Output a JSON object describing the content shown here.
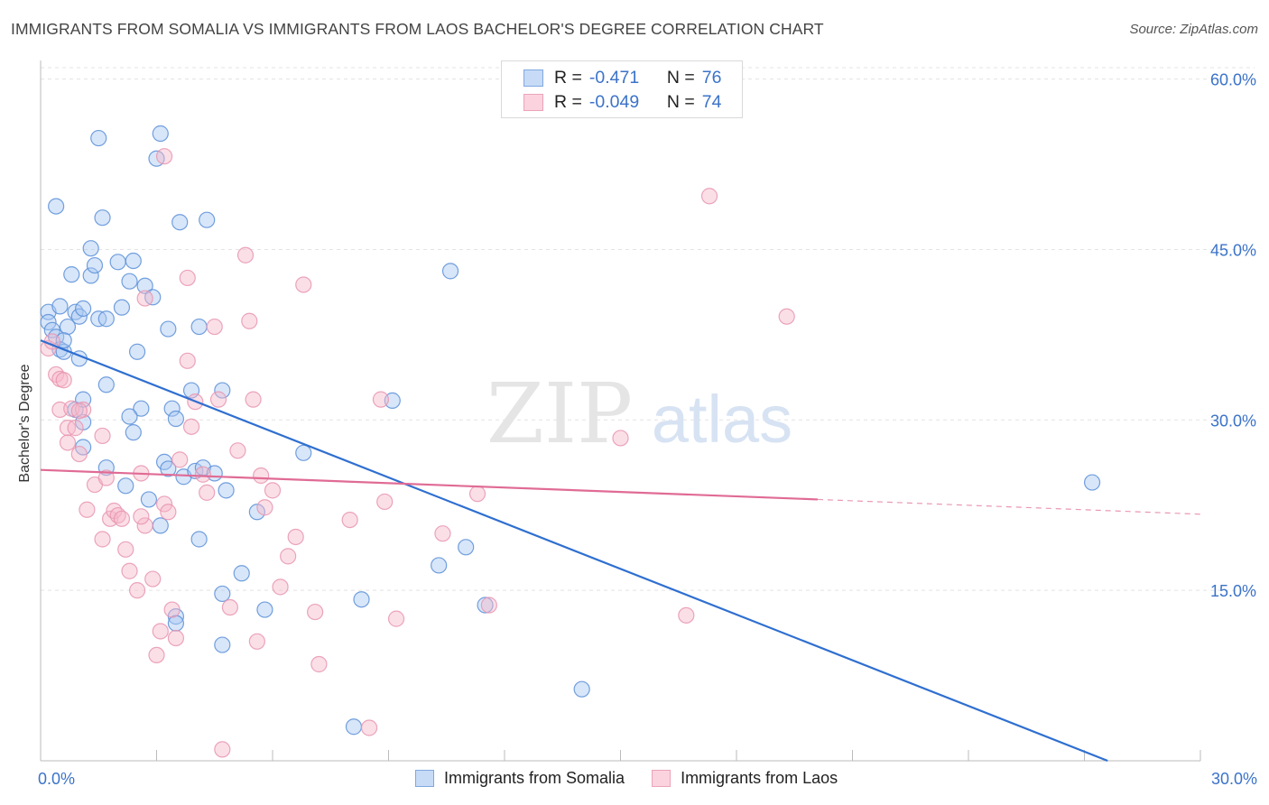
{
  "header": {
    "title": "IMMIGRANTS FROM SOMALIA VS IMMIGRANTS FROM LAOS BACHELOR'S DEGREE CORRELATION CHART",
    "source": "Source: ZipAtlas.com"
  },
  "watermark": {
    "zip": "ZIP",
    "atlas": "atlas"
  },
  "stats_legend": {
    "rows": [
      {
        "r_label": "R =",
        "r_value": "-0.471",
        "n_label": "N =",
        "n_value": "76",
        "color": "#a9c8f2"
      },
      {
        "r_label": "R =",
        "r_value": "-0.049",
        "n_label": "N =",
        "n_value": "74",
        "color": "#f7b7c9"
      }
    ]
  },
  "chart_data": {
    "type": "scatter",
    "title": "IMMIGRANTS FROM SOMALIA VS IMMIGRANTS FROM LAOS BACHELOR'S DEGREE CORRELATION CHART",
    "xlabel": "",
    "ylabel": "Bachelor's Degree",
    "xlim": [
      0,
      30
    ],
    "ylim": [
      0,
      61
    ],
    "x_tick_labels": [
      "0.0%",
      "30.0%"
    ],
    "y_ticks": [
      15,
      30,
      45,
      60
    ],
    "y_tick_labels": [
      "15.0%",
      "30.0%",
      "45.0%",
      "60.0%"
    ],
    "grid": true,
    "legend": "bottom",
    "series": [
      {
        "name": "Immigrants from Somalia",
        "color": "#5b8fd8",
        "fill": "#a9c8f2",
        "trend": {
          "x": [
            0,
            27.6
          ],
          "y": [
            37.0,
            0.0
          ],
          "color": "#2f6fd0"
        },
        "points": [
          [
            0.2,
            39.5
          ],
          [
            0.2,
            38.6
          ],
          [
            0.3,
            37.9
          ],
          [
            0.4,
            37.3
          ],
          [
            0.5,
            36.2
          ],
          [
            0.6,
            36.0
          ],
          [
            0.4,
            48.8
          ],
          [
            0.5,
            40.0
          ],
          [
            0.7,
            38.2
          ],
          [
            0.8,
            42.8
          ],
          [
            0.9,
            39.5
          ],
          [
            1.0,
            39.1
          ],
          [
            1.0,
            35.4
          ],
          [
            0.9,
            30.9
          ],
          [
            1.1,
            31.8
          ],
          [
            1.1,
            39.8
          ],
          [
            1.3,
            42.7
          ],
          [
            1.3,
            45.1
          ],
          [
            1.4,
            43.6
          ],
          [
            1.5,
            38.9
          ],
          [
            1.7,
            38.9
          ],
          [
            1.6,
            47.8
          ],
          [
            1.7,
            33.1
          ],
          [
            2.0,
            43.9
          ],
          [
            2.1,
            39.9
          ],
          [
            2.3,
            42.2
          ],
          [
            2.4,
            44.0
          ],
          [
            2.5,
            36.0
          ],
          [
            2.6,
            31.0
          ],
          [
            2.7,
            41.8
          ],
          [
            2.9,
            40.8
          ],
          [
            3.0,
            53.0
          ],
          [
            3.1,
            55.2
          ],
          [
            3.3,
            38.0
          ],
          [
            3.4,
            31.0
          ],
          [
            3.5,
            30.1
          ],
          [
            3.6,
            47.4
          ],
          [
            3.9,
            32.6
          ],
          [
            4.1,
            38.2
          ],
          [
            4.3,
            47.6
          ],
          [
            4.7,
            32.6
          ],
          [
            1.5,
            54.8
          ],
          [
            2.3,
            30.3
          ],
          [
            2.4,
            28.9
          ],
          [
            1.1,
            29.8
          ],
          [
            1.1,
            27.6
          ],
          [
            1.7,
            25.8
          ],
          [
            2.2,
            24.2
          ],
          [
            2.8,
            23.0
          ],
          [
            3.2,
            26.3
          ],
          [
            3.3,
            25.7
          ],
          [
            3.1,
            20.7
          ],
          [
            3.7,
            25.0
          ],
          [
            4.0,
            25.5
          ],
          [
            4.2,
            25.8
          ],
          [
            4.1,
            19.5
          ],
          [
            4.8,
            23.8
          ],
          [
            5.6,
            21.9
          ],
          [
            6.8,
            27.1
          ],
          [
            9.1,
            31.7
          ],
          [
            10.6,
            43.1
          ],
          [
            11.0,
            18.8
          ],
          [
            10.3,
            17.2
          ],
          [
            11.5,
            13.7
          ],
          [
            8.3,
            14.2
          ],
          [
            5.2,
            16.5
          ],
          [
            4.7,
            14.7
          ],
          [
            5.8,
            13.3
          ],
          [
            3.5,
            12.7
          ],
          [
            4.7,
            10.2
          ],
          [
            3.5,
            12.1
          ],
          [
            8.1,
            3.0
          ],
          [
            14.0,
            6.3
          ],
          [
            27.2,
            24.5
          ],
          [
            4.5,
            25.3
          ],
          [
            0.6,
            37.0
          ]
        ]
      },
      {
        "name": "Immigrants from Laos",
        "color": "#e795b0",
        "fill": "#f7b7c9",
        "trend": {
          "x": [
            0,
            20.1,
            30
          ],
          "y": [
            25.6,
            23.0,
            21.7
          ],
          "dashed_from": 20.1,
          "color": "#e06b95"
        },
        "points": [
          [
            0.2,
            36.3
          ],
          [
            0.3,
            36.9
          ],
          [
            0.4,
            34.0
          ],
          [
            0.5,
            33.6
          ],
          [
            0.5,
            30.9
          ],
          [
            0.7,
            29.3
          ],
          [
            0.7,
            28.0
          ],
          [
            0.8,
            31.0
          ],
          [
            0.9,
            29.3
          ],
          [
            1.0,
            27.0
          ],
          [
            1.1,
            30.9
          ],
          [
            1.2,
            22.1
          ],
          [
            1.4,
            24.3
          ],
          [
            1.6,
            28.6
          ],
          [
            1.7,
            24.9
          ],
          [
            1.6,
            19.5
          ],
          [
            1.8,
            21.3
          ],
          [
            1.9,
            22.0
          ],
          [
            2.0,
            21.6
          ],
          [
            2.1,
            21.3
          ],
          [
            2.2,
            18.6
          ],
          [
            2.3,
            16.7
          ],
          [
            2.5,
            15.0
          ],
          [
            2.6,
            25.3
          ],
          [
            2.7,
            20.7
          ],
          [
            2.9,
            16.0
          ],
          [
            3.0,
            9.3
          ],
          [
            3.1,
            11.4
          ],
          [
            3.2,
            22.6
          ],
          [
            3.3,
            21.9
          ],
          [
            3.4,
            13.3
          ],
          [
            3.5,
            10.8
          ],
          [
            3.6,
            26.5
          ],
          [
            3.8,
            35.2
          ],
          [
            3.9,
            29.4
          ],
          [
            4.0,
            31.6
          ],
          [
            4.2,
            25.2
          ],
          [
            4.3,
            23.6
          ],
          [
            4.5,
            38.2
          ],
          [
            4.6,
            31.8
          ],
          [
            4.7,
            1.0
          ],
          [
            4.9,
            13.5
          ],
          [
            5.1,
            27.3
          ],
          [
            5.3,
            44.5
          ],
          [
            5.4,
            38.7
          ],
          [
            5.5,
            31.8
          ],
          [
            5.7,
            25.1
          ],
          [
            5.8,
            22.3
          ],
          [
            6.0,
            23.8
          ],
          [
            6.2,
            15.3
          ],
          [
            6.4,
            18.0
          ],
          [
            6.6,
            19.7
          ],
          [
            6.8,
            41.9
          ],
          [
            7.1,
            13.1
          ],
          [
            7.2,
            8.5
          ],
          [
            8.0,
            21.2
          ],
          [
            8.5,
            2.9
          ],
          [
            8.9,
            22.8
          ],
          [
            9.2,
            12.5
          ],
          [
            8.8,
            31.8
          ],
          [
            3.8,
            42.5
          ],
          [
            3.2,
            53.2
          ],
          [
            2.7,
            40.7
          ],
          [
            10.4,
            20.0
          ],
          [
            11.3,
            23.5
          ],
          [
            11.6,
            13.7
          ],
          [
            15.0,
            28.4
          ],
          [
            16.7,
            12.8
          ],
          [
            17.3,
            49.7
          ],
          [
            19.3,
            39.1
          ],
          [
            2.6,
            21.5
          ],
          [
            5.6,
            10.5
          ],
          [
            0.6,
            33.5
          ],
          [
            1.0,
            30.8
          ]
        ]
      }
    ]
  }
}
